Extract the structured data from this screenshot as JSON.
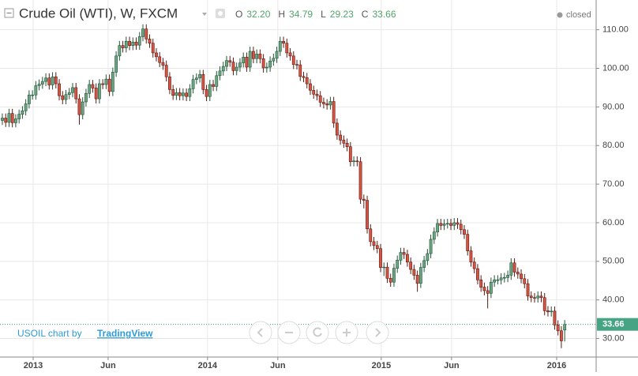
{
  "chart_data": {
    "type": "candlestick",
    "title": "Crude Oil (WTI), W, FXCM",
    "legend_values": [
      {
        "label": "O",
        "value": "32.20"
      },
      {
        "label": "H",
        "value": "34.79"
      },
      {
        "label": "L",
        "value": "29.23"
      },
      {
        "label": "C",
        "value": "33.66"
      }
    ],
    "status": "closed",
    "last_price_label": "33.66",
    "watermark": {
      "text": "USOIL chart by",
      "link": "TradingView"
    },
    "up_color": "#6ba583",
    "down_color": "#d75442",
    "grid": true,
    "xlim": [
      -0.7,
      177.4
    ],
    "xticks": [
      {
        "value": 9.2,
        "label": "2013"
      },
      {
        "value": 31.6,
        "label": "Jun"
      },
      {
        "value": 61.3,
        "label": "2014"
      },
      {
        "value": 82.3,
        "label": "Jun"
      },
      {
        "value": 113.2,
        "label": "2015"
      },
      {
        "value": 134.2,
        "label": "Jun"
      },
      {
        "value": 165.6,
        "label": "2016"
      }
    ],
    "ylim": [
      25.2,
      117.7
    ],
    "yticks": [
      {
        "value": 30,
        "label": "30.00"
      },
      {
        "value": 40,
        "label": "40.00"
      },
      {
        "value": 50,
        "label": "50.00"
      },
      {
        "value": 60,
        "label": "60.00"
      },
      {
        "value": 70,
        "label": "70.00"
      },
      {
        "value": 80,
        "label": "80.00"
      },
      {
        "value": 90,
        "label": "90.00"
      },
      {
        "value": 100,
        "label": "100.00"
      },
      {
        "value": 110,
        "label": "110.00"
      }
    ],
    "open": [
      86.5,
      87.1,
      86.0,
      88.3,
      85.9,
      86.9,
      88.1,
      89.0,
      90.8,
      93.1,
      93.1,
      95.5,
      95.9,
      96.6,
      97.5,
      95.7,
      97.8,
      96.0,
      92.9,
      91.9,
      93.2,
      93.7,
      95.0,
      92.1,
      88.0,
      91.3,
      93.5,
      95.8,
      94.9,
      92.1,
      96.0,
      95.8,
      97.2,
      94.0,
      99.0,
      103.2,
      105.9,
      105.3,
      107.0,
      105.9,
      106.8,
      106.0,
      108.2,
      110.2,
      107.6,
      106.5,
      104.0,
      103.0,
      101.5,
      100.8,
      97.8,
      94.5,
      93.0,
      93.7,
      92.9,
      93.6,
      92.7,
      94.7,
      97.1,
      97.5,
      98.4,
      94.5,
      92.7,
      95.8,
      95.3,
      98.1,
      99.3,
      100.5,
      102.0,
      101.6,
      99.4,
      100.3,
      101.4,
      102.9,
      100.3,
      104.4,
      102.5,
      103.7,
      102.5,
      100.1,
      100.3,
      101.9,
      102.6,
      104.4,
      107.0,
      106.5,
      104.0,
      103.2,
      101.0,
      100.9,
      97.9,
      97.6,
      96.0,
      94.3,
      93.3,
      92.9,
      91.2,
      90.8,
      90.5,
      91.4,
      85.8,
      82.7,
      81.4,
      80.6,
      79.7,
      75.8,
      76.0,
      75.8,
      66.1,
      65.8,
      58.4,
      55.1,
      54.1,
      53.3,
      48.4,
      48.5,
      45.6,
      44.6,
      48.2,
      50.3,
      52.3,
      51.8,
      49.8,
      47.9,
      46.4,
      44.3,
      48.4,
      50.2,
      52.0,
      55.7,
      57.6,
      59.8,
      59.3,
      59.7,
      59.8,
      59.3,
      60.0,
      59.6,
      58.2,
      57.0,
      52.7,
      49.8,
      48.1,
      45.2,
      43.3,
      42.4,
      41.7,
      44.6,
      45.2,
      45.2,
      45.7,
      45.8,
      46.4,
      49.6,
      47.2,
      46.7,
      45.5,
      44.2,
      41.0,
      40.6,
      40.5,
      41.0,
      40.6,
      37.2,
      36.9,
      37.1,
      33.5,
      32.0,
      32.2
    ],
    "high": [
      88.3,
      88.3,
      89.5,
      89.5,
      88.1,
      89.3,
      90.2,
      92.0,
      94.3,
      94.3,
      96.7,
      97.1,
      97.8,
      98.7,
      98.7,
      99.0,
      99.0,
      97.2,
      94.1,
      94.4,
      94.9,
      96.2,
      96.2,
      93.3,
      92.5,
      94.7,
      97.0,
      97.0,
      96.1,
      97.2,
      97.2,
      98.4,
      98.4,
      100.2,
      104.4,
      107.1,
      107.1,
      108.2,
      108.2,
      108.0,
      108.0,
      109.4,
      111.4,
      111.4,
      108.8,
      107.7,
      105.2,
      104.2,
      102.7,
      102.0,
      99.0,
      95.7,
      94.9,
      94.9,
      94.8,
      94.8,
      95.9,
      98.3,
      98.7,
      99.6,
      99.6,
      95.7,
      97.0,
      97.0,
      99.3,
      100.5,
      101.7,
      103.2,
      103.2,
      102.8,
      101.5,
      102.6,
      104.1,
      104.1,
      105.6,
      105.6,
      104.9,
      104.9,
      103.7,
      101.5,
      103.1,
      103.8,
      105.6,
      108.2,
      108.2,
      107.7,
      105.2,
      104.4,
      102.2,
      102.1,
      99.1,
      98.8,
      97.2,
      95.5,
      94.5,
      94.1,
      92.4,
      92.0,
      92.6,
      92.6,
      87.0,
      83.9,
      82.6,
      81.8,
      80.9,
      77.2,
      77.2,
      77.0,
      67.3,
      67.0,
      59.6,
      56.3,
      55.3,
      54.5,
      49.7,
      49.7,
      46.8,
      49.4,
      51.5,
      53.5,
      53.5,
      53.0,
      51.0,
      49.1,
      47.6,
      49.6,
      51.4,
      53.2,
      56.9,
      58.8,
      61.0,
      61.0,
      60.9,
      61.0,
      61.0,
      61.2,
      61.2,
      60.8,
      59.4,
      58.2,
      53.9,
      51.0,
      49.3,
      46.4,
      44.5,
      43.6,
      45.8,
      46.4,
      46.4,
      46.9,
      47.0,
      47.6,
      50.8,
      50.8,
      48.4,
      47.9,
      46.7,
      45.4,
      42.2,
      41.8,
      42.2,
      42.2,
      41.8,
      38.4,
      38.3,
      38.3,
      34.7,
      33.2,
      34.79
    ],
    "low": [
      85.3,
      84.8,
      84.8,
      84.7,
      84.7,
      85.7,
      86.9,
      87.8,
      89.6,
      91.9,
      91.9,
      94.3,
      94.7,
      95.4,
      94.5,
      94.5,
      94.8,
      91.7,
      90.7,
      90.7,
      92.0,
      92.5,
      90.9,
      85.4,
      86.8,
      90.1,
      92.3,
      93.7,
      90.9,
      90.9,
      94.6,
      94.6,
      92.8,
      92.8,
      97.8,
      102.0,
      104.1,
      104.1,
      104.7,
      104.7,
      104.8,
      104.8,
      107.0,
      106.4,
      105.3,
      102.8,
      101.8,
      100.3,
      99.6,
      96.6,
      93.3,
      91.8,
      91.8,
      91.7,
      91.7,
      91.5,
      91.5,
      93.5,
      95.9,
      96.3,
      93.3,
      91.5,
      91.5,
      94.1,
      94.1,
      96.9,
      98.1,
      99.3,
      100.4,
      98.2,
      98.2,
      99.1,
      100.2,
      99.1,
      99.1,
      101.3,
      101.3,
      101.3,
      98.9,
      98.9,
      99.1,
      100.7,
      101.4,
      103.2,
      105.3,
      102.8,
      102.0,
      99.8,
      99.7,
      96.7,
      96.4,
      94.8,
      93.1,
      92.1,
      91.7,
      90.0,
      89.6,
      89.3,
      89.3,
      84.6,
      81.5,
      80.2,
      79.4,
      78.5,
      74.6,
      74.6,
      74.6,
      64.9,
      63.7,
      57.2,
      53.9,
      52.9,
      52.1,
      47.2,
      46.2,
      44.4,
      43.4,
      43.4,
      47.0,
      49.1,
      50.6,
      48.6,
      46.7,
      45.2,
      42.1,
      43.1,
      47.2,
      49.0,
      50.8,
      54.5,
      56.4,
      58.1,
      58.1,
      58.5,
      58.1,
      58.1,
      58.4,
      57.0,
      55.8,
      51.5,
      48.6,
      46.9,
      44.0,
      42.1,
      41.2,
      37.8,
      40.5,
      43.4,
      44.0,
      44.0,
      44.5,
      44.6,
      45.2,
      46.0,
      45.5,
      44.3,
      43.0,
      39.8,
      39.4,
      39.3,
      39.3,
      39.4,
      36.0,
      35.7,
      35.7,
      32.3,
      30.8,
      27.5,
      29.23
    ],
    "close": [
      87.1,
      86.0,
      88.3,
      85.9,
      86.9,
      88.1,
      89.0,
      90.8,
      93.1,
      93.1,
      95.5,
      95.9,
      96.6,
      97.5,
      95.7,
      97.8,
      96.0,
      92.9,
      91.9,
      93.2,
      93.7,
      95.0,
      92.1,
      88.0,
      91.3,
      93.5,
      95.8,
      94.9,
      92.1,
      96.0,
      95.8,
      97.2,
      94.0,
      99.0,
      103.2,
      105.9,
      105.3,
      107.0,
      105.9,
      106.8,
      106.0,
      108.2,
      110.2,
      107.6,
      106.5,
      104.0,
      103.0,
      101.5,
      100.8,
      97.8,
      94.5,
      93.0,
      93.7,
      92.9,
      93.6,
      92.7,
      94.7,
      97.1,
      97.5,
      98.4,
      94.5,
      92.7,
      95.8,
      95.3,
      98.1,
      99.3,
      100.5,
      102.0,
      101.6,
      99.4,
      100.3,
      101.4,
      102.9,
      100.3,
      104.4,
      102.5,
      103.7,
      102.5,
      100.1,
      100.3,
      101.9,
      102.6,
      104.4,
      107.0,
      106.5,
      104.0,
      103.2,
      101.0,
      100.9,
      97.9,
      97.6,
      96.0,
      94.3,
      93.3,
      92.9,
      91.2,
      90.8,
      90.5,
      91.4,
      85.8,
      82.7,
      81.4,
      80.6,
      79.7,
      75.8,
      76.0,
      75.8,
      66.1,
      65.8,
      58.4,
      55.1,
      54.1,
      53.3,
      48.4,
      48.5,
      45.6,
      44.6,
      48.2,
      50.3,
      52.3,
      51.8,
      49.8,
      47.9,
      46.4,
      44.3,
      48.4,
      50.2,
      52.0,
      55.7,
      57.6,
      59.8,
      59.3,
      59.7,
      59.8,
      59.3,
      60.0,
      59.6,
      58.2,
      57.0,
      52.7,
      49.8,
      48.1,
      45.2,
      43.3,
      42.4,
      41.7,
      44.6,
      45.2,
      45.2,
      45.7,
      45.8,
      46.4,
      49.6,
      47.2,
      46.7,
      45.5,
      44.2,
      41.0,
      40.6,
      40.5,
      41.0,
      40.6,
      37.2,
      36.9,
      37.1,
      33.5,
      32.0,
      29.4,
      33.66
    ]
  }
}
